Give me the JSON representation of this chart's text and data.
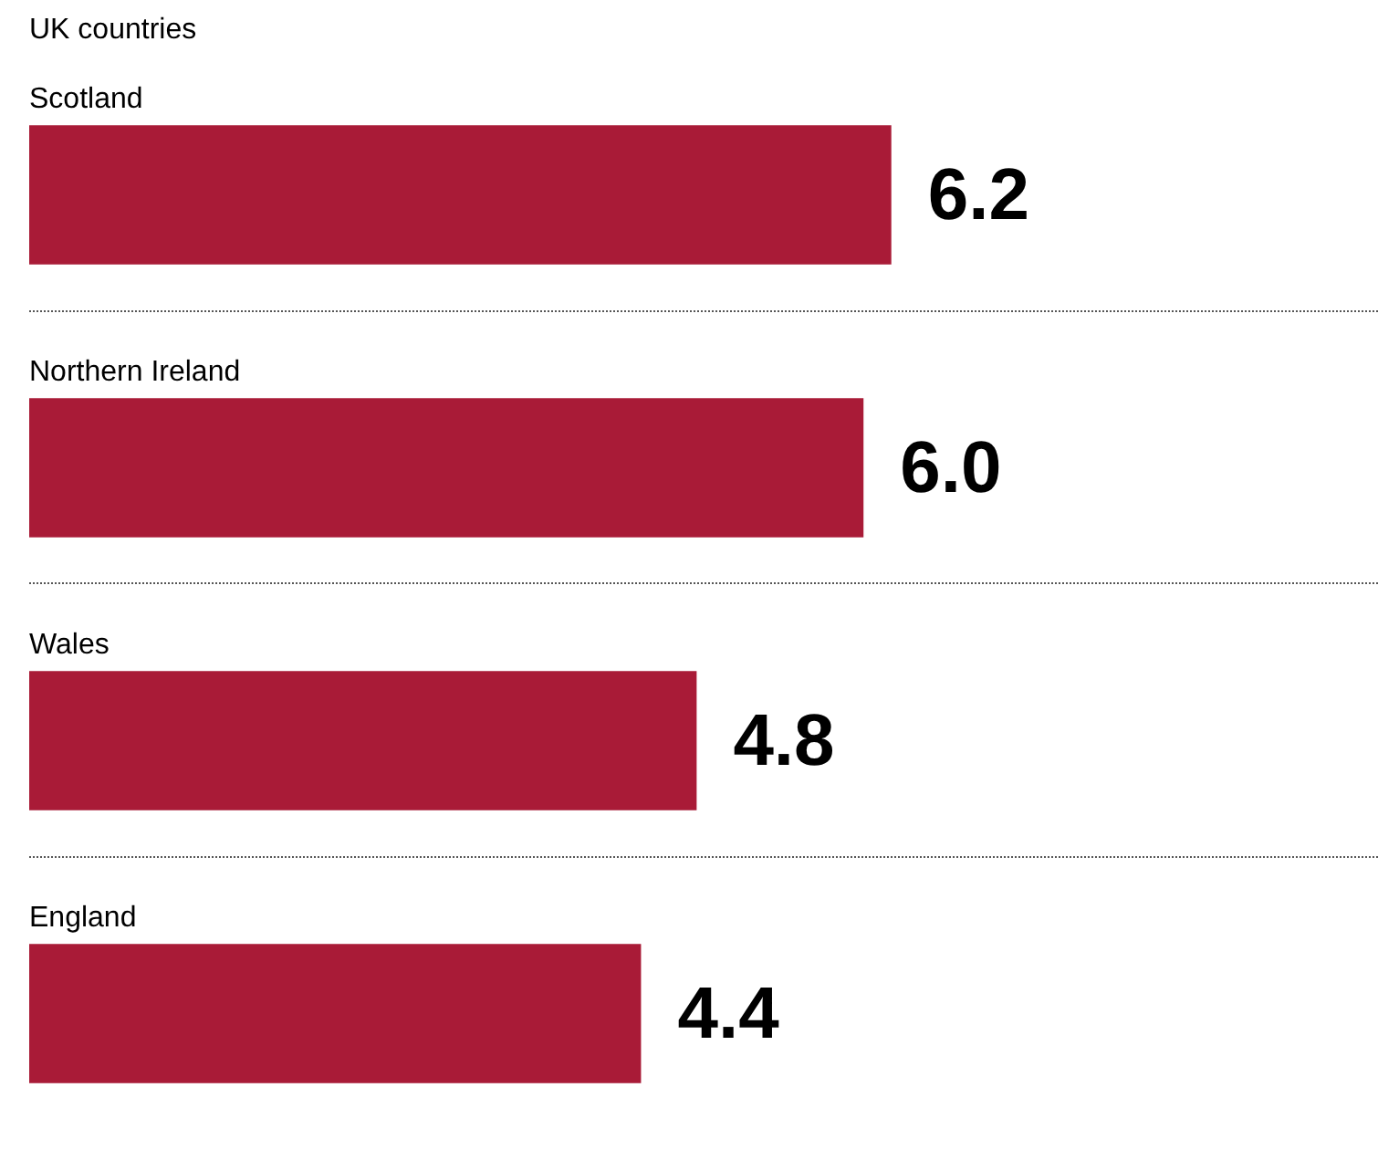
{
  "chart_data": {
    "type": "bar",
    "orientation": "horizontal",
    "title": "UK countries",
    "categories": [
      "Scotland",
      "Northern Ireland",
      "Wales",
      "England"
    ],
    "values": [
      6.2,
      6.0,
      4.8,
      4.4
    ],
    "color": "#a91b37",
    "xlim": [
      0,
      9.7
    ],
    "tick_labels": false,
    "value_labels": [
      "6.2",
      "6.0",
      "4.8",
      "4.4"
    ]
  }
}
